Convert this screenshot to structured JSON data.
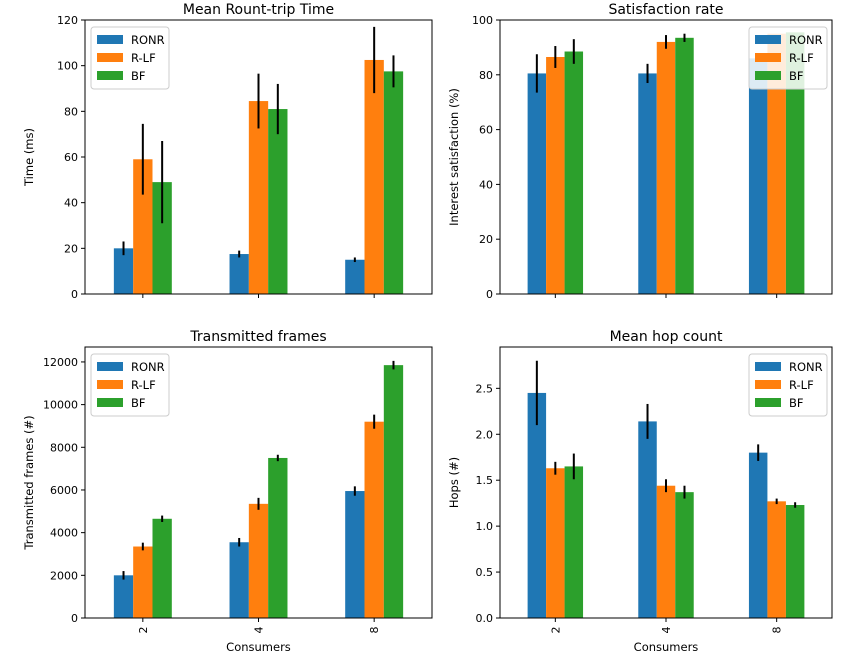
{
  "figure": {
    "colors": {
      "RONR": "#1f77b4",
      "R-LF": "#ff7f0e",
      "BF": "#2ca02c",
      "error_bar": "#000000"
    }
  },
  "chart_data": [
    {
      "type": "bar",
      "title": "Mean Rount-trip Time",
      "xlabel": "",
      "ylabel": "Time (ms)",
      "categories": [
        "2",
        "4",
        "8"
      ],
      "ylim": [
        0,
        120
      ],
      "yticks": [
        0,
        20,
        40,
        60,
        80,
        100,
        120
      ],
      "ytick_labels": [
        "0",
        "20",
        "40",
        "60",
        "80",
        "100",
        "120"
      ],
      "show_xtick_labels": false,
      "grid": false,
      "legend_position": "top-left",
      "series": [
        {
          "name": "RONR",
          "color": "#1f77b4",
          "values": [
            20,
            17.5,
            15
          ],
          "errors": [
            3,
            1.5,
            1
          ]
        },
        {
          "name": "R-LF",
          "color": "#ff7f0e",
          "values": [
            59,
            84.5,
            102.5
          ],
          "errors": [
            15.5,
            12,
            14.5
          ]
        },
        {
          "name": "BF",
          "color": "#2ca02c",
          "values": [
            49,
            81,
            97.5
          ],
          "errors": [
            18,
            11,
            7
          ]
        }
      ]
    },
    {
      "type": "bar",
      "title": "Satisfaction rate",
      "xlabel": "",
      "ylabel": "Interest satisfaction (%)",
      "categories": [
        "2",
        "4",
        "8"
      ],
      "ylim": [
        0,
        100
      ],
      "yticks": [
        0,
        20,
        40,
        60,
        80,
        100
      ],
      "ytick_labels": [
        "0",
        "20",
        "40",
        "60",
        "80",
        "100"
      ],
      "show_xtick_labels": false,
      "grid": false,
      "legend_position": "top-right",
      "series": [
        {
          "name": "RONR",
          "color": "#1f77b4",
          "values": [
            80.5,
            80.5,
            86
          ],
          "errors": [
            7,
            3.5,
            0
          ]
        },
        {
          "name": "R-LF",
          "color": "#ff7f0e",
          "values": [
            86.5,
            92,
            95
          ],
          "errors": [
            4,
            2.5,
            0
          ]
        },
        {
          "name": "BF",
          "color": "#2ca02c",
          "values": [
            88.5,
            93.5,
            95.5
          ],
          "errors": [
            4.5,
            1.5,
            0
          ]
        }
      ]
    },
    {
      "type": "bar",
      "title": "Transmitted frames",
      "xlabel": "Consumers",
      "ylabel": "Transmitted frames (#)",
      "categories": [
        "2",
        "4",
        "8"
      ],
      "ylim": [
        0,
        12700
      ],
      "yticks": [
        0,
        2000,
        4000,
        6000,
        8000,
        10000,
        12000
      ],
      "ytick_labels": [
        "0",
        "2000",
        "4000",
        "6000",
        "8000",
        "10000",
        "12000"
      ],
      "show_xtick_labels": true,
      "grid": false,
      "legend_position": "top-left",
      "series": [
        {
          "name": "RONR",
          "color": "#1f77b4",
          "values": [
            2000,
            3550,
            5950
          ],
          "errors": [
            200,
            200,
            220
          ]
        },
        {
          "name": "R-LF",
          "color": "#ff7f0e",
          "values": [
            3350,
            5350,
            9200
          ],
          "errors": [
            180,
            280,
            330
          ]
        },
        {
          "name": "BF",
          "color": "#2ca02c",
          "values": [
            4650,
            7500,
            11850
          ],
          "errors": [
            150,
            150,
            200
          ]
        }
      ]
    },
    {
      "type": "bar",
      "title": "Mean hop count",
      "xlabel": "Consumers",
      "ylabel": "Hops (#)",
      "categories": [
        "2",
        "4",
        "8"
      ],
      "ylim": [
        0,
        2.95
      ],
      "yticks": [
        0,
        0.5,
        1,
        1.5,
        2,
        2.5
      ],
      "ytick_labels": [
        "0.0",
        "0.5",
        "1.0",
        "1.5",
        "2.0",
        "2.5"
      ],
      "show_xtick_labels": true,
      "grid": false,
      "legend_position": "top-right",
      "series": [
        {
          "name": "RONR",
          "color": "#1f77b4",
          "values": [
            2.45,
            2.14,
            1.8
          ],
          "errors": [
            0.35,
            0.19,
            0.09
          ]
        },
        {
          "name": "R-LF",
          "color": "#ff7f0e",
          "values": [
            1.63,
            1.44,
            1.27
          ],
          "errors": [
            0.07,
            0.07,
            0.03
          ]
        },
        {
          "name": "BF",
          "color": "#2ca02c",
          "values": [
            1.65,
            1.37,
            1.23
          ],
          "errors": [
            0.14,
            0.07,
            0.03
          ]
        }
      ]
    }
  ]
}
